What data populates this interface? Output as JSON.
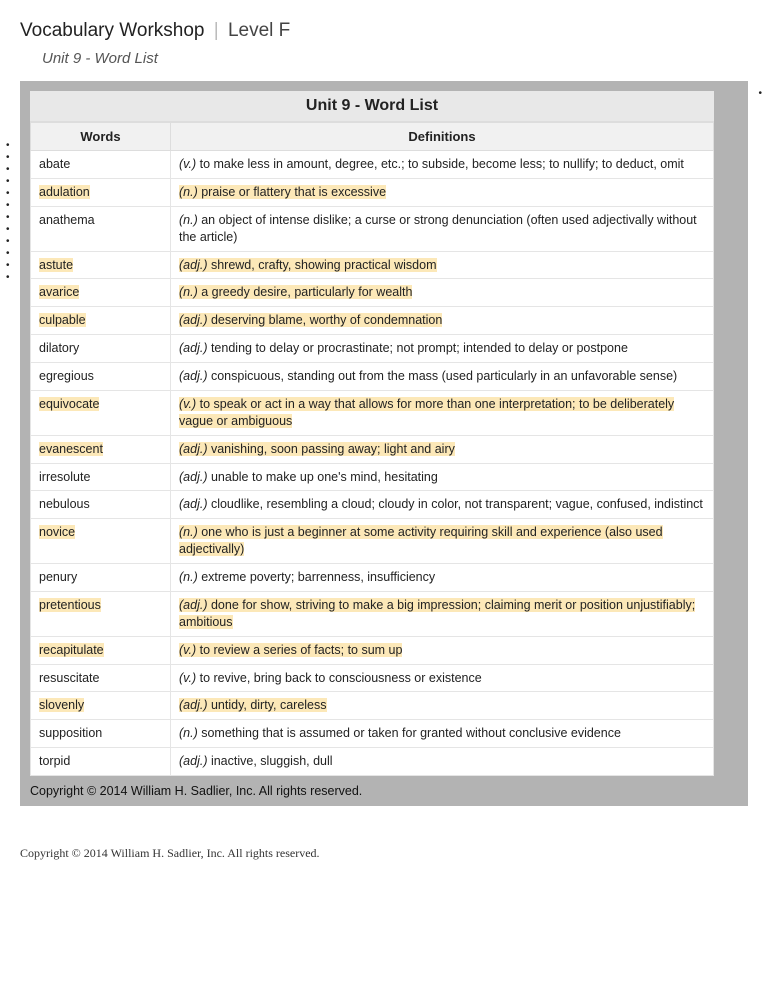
{
  "header": {
    "title_main": "Vocabulary Workshop",
    "separator": "|",
    "title_level": "Level F",
    "subhead": "Unit 9 - Word List"
  },
  "table": {
    "title": "Unit 9 - Word List",
    "col_words": "Words",
    "col_defs": "Definitions",
    "highlight_color": "#fce8b8",
    "header_bg": "#f1f1f1",
    "container_bg": "#b3b3b3",
    "rows": [
      {
        "word": "abate",
        "pos": "v.",
        "def": "to make less in amount, degree, etc.; to subside, become less; to nullify; to deduct, omit",
        "hl": false
      },
      {
        "word": "adulation",
        "pos": "n.",
        "def": "praise or flattery that is excessive",
        "hl": true
      },
      {
        "word": "anathema",
        "pos": "n.",
        "def": "an object of intense dislike; a curse or strong denunciation (often used adjectivally without the article)",
        "hl": false
      },
      {
        "word": "astute",
        "pos": "adj.",
        "def": "shrewd, crafty, showing practical wisdom",
        "hl": true
      },
      {
        "word": "avarice",
        "pos": "n.",
        "def": "a greedy desire, particularly for wealth",
        "hl": true
      },
      {
        "word": "culpable",
        "pos": "adj.",
        "def": "deserving blame, worthy of condemnation",
        "hl": true
      },
      {
        "word": "dilatory",
        "pos": "adj.",
        "def": "tending to delay or procrastinate; not prompt; intended to delay or postpone",
        "hl": false
      },
      {
        "word": "egregious",
        "pos": "adj.",
        "def": "conspicuous, standing out from the mass (used particularly in an unfavorable sense)",
        "hl": false
      },
      {
        "word": "equivocate",
        "pos": "v.",
        "def": "to speak or act in a way that allows for more than one interpretation; to be deliberately vague or ambiguous",
        "hl": true
      },
      {
        "word": "evanescent",
        "pos": "adj.",
        "def": "vanishing, soon passing away; light and airy",
        "hl": true
      },
      {
        "word": "irresolute",
        "pos": "adj.",
        "def": "unable to make up one's mind, hesitating",
        "hl": false
      },
      {
        "word": "nebulous",
        "pos": "adj.",
        "def": "cloudlike, resembling a cloud; cloudy in color, not transparent; vague, confused, indistinct",
        "hl": false
      },
      {
        "word": "novice",
        "pos": "n.",
        "def": "one who is just a beginner at some activity requiring skill and experience (also used adjectivally)",
        "hl": true
      },
      {
        "word": "penury",
        "pos": "n.",
        "def": "extreme poverty; barrenness, insufficiency",
        "hl": false
      },
      {
        "word": "pretentious",
        "pos": "adj.",
        "def": "done for show, striving to make a big impression; claiming merit or position unjustifiably; ambitious",
        "hl": true
      },
      {
        "word": "recapitulate",
        "pos": "v.",
        "def": "to review a series of facts; to sum up",
        "hl": true
      },
      {
        "word": "resuscitate",
        "pos": "v.",
        "def": "to revive, bring back to consciousness or existence",
        "hl": false
      },
      {
        "word": "slovenly",
        "pos": "adj.",
        "def": "untidy, dirty, careless",
        "hl": true
      },
      {
        "word": "supposition",
        "pos": "n.",
        "def": "something that is assumed or taken for granted without conclusive evidence",
        "hl": false
      },
      {
        "word": "torpid",
        "pos": "adj.",
        "def": "inactive, sluggish, dull",
        "hl": false
      }
    ]
  },
  "copyright_inner": "Copyright © 2014 William H. Sadlier, Inc. All rights reserved.",
  "copyright_outer": "Copyright © 2014 William H. Sadlier, Inc. All rights reserved."
}
